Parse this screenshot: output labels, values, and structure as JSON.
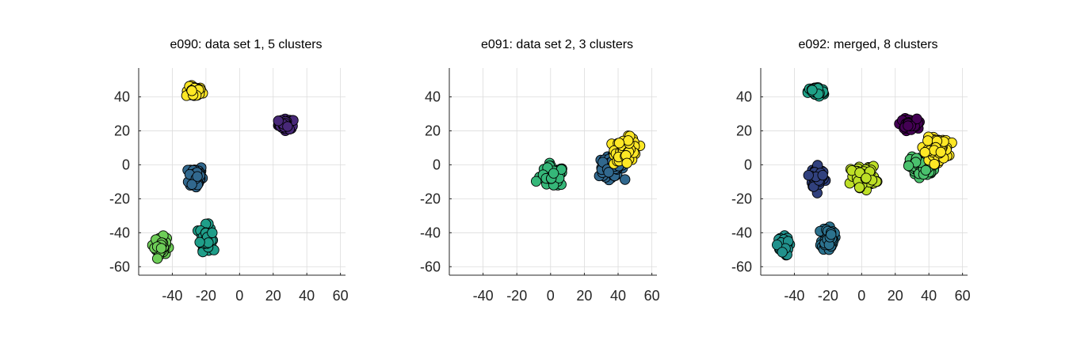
{
  "chart_data": [
    {
      "type": "scatter",
      "title": "e090: data set 1, 5 clusters",
      "xlim": [
        -60,
        63
      ],
      "ylim": [
        -65,
        57
      ],
      "xticks": [
        -40,
        -20,
        0,
        20,
        40,
        60
      ],
      "yticks": [
        40,
        20,
        0,
        -20,
        -40,
        -60
      ],
      "grid": true,
      "series": [
        {
          "color": "#482878",
          "center": [
            28,
            24
          ],
          "spread": [
            4,
            2.5
          ],
          "count": 55
        },
        {
          "color": "#fde725",
          "center": [
            -27,
            43
          ],
          "spread": [
            4,
            2.5
          ],
          "count": 55
        },
        {
          "color": "#31688e",
          "center": [
            -26,
            -7
          ],
          "spread": [
            3.5,
            6
          ],
          "count": 55
        },
        {
          "color": "#1f9e89",
          "center": [
            -20,
            -43
          ],
          "spread": [
            3,
            6
          ],
          "count": 55
        },
        {
          "color": "#6ece58",
          "center": [
            -47,
            -48
          ],
          "spread": [
            3,
            4.5
          ],
          "count": 50
        }
      ]
    },
    {
      "type": "scatter",
      "title": "e091: data set 2, 3 clusters",
      "xlim": [
        -60,
        63
      ],
      "ylim": [
        -65,
        57
      ],
      "xticks": [
        -40,
        -20,
        0,
        20,
        40,
        60
      ],
      "yticks": [
        40,
        20,
        0,
        -20,
        -40,
        -60
      ],
      "grid": true,
      "series": [
        {
          "color": "#31688e",
          "center": [
            36,
            -1
          ],
          "spread": [
            6,
            5
          ],
          "count": 80
        },
        {
          "color": "#35b779",
          "center": [
            1,
            -7
          ],
          "spread": [
            6,
            5
          ],
          "count": 80
        },
        {
          "color": "#fde725",
          "center": [
            45,
            9
          ],
          "spread": [
            5.5,
            5.5
          ],
          "count": 90
        }
      ]
    },
    {
      "type": "scatter",
      "title": "e092: merged, 8 clusters",
      "xlim": [
        -60,
        63
      ],
      "ylim": [
        -65,
        57
      ],
      "xticks": [
        -40,
        -20,
        0,
        20,
        40,
        60
      ],
      "yticks": [
        40,
        20,
        0,
        -20,
        -40,
        -60
      ],
      "grid": true,
      "series": [
        {
          "color": "#440154",
          "center": [
            28,
            24
          ],
          "spread": [
            4,
            2.5
          ],
          "count": 55
        },
        {
          "color": "#1fa187",
          "center": [
            -27,
            43
          ],
          "spread": [
            4,
            2.5
          ],
          "count": 55
        },
        {
          "color": "#31417e",
          "center": [
            -26,
            -7
          ],
          "spread": [
            3.5,
            6
          ],
          "count": 55
        },
        {
          "color": "#2c728e",
          "center": [
            -20,
            -43
          ],
          "spread": [
            3,
            6
          ],
          "count": 55
        },
        {
          "color": "#21918c",
          "center": [
            -47,
            -48
          ],
          "spread": [
            3,
            4.5
          ],
          "count": 50
        },
        {
          "color": "#4ac16d",
          "center": [
            36,
            -1
          ],
          "spread": [
            6,
            5
          ],
          "count": 80
        },
        {
          "color": "#bddf26",
          "center": [
            1,
            -7
          ],
          "spread": [
            6,
            5
          ],
          "count": 80
        },
        {
          "color": "#fde725",
          "center": [
            45,
            9
          ],
          "spread": [
            5.5,
            5.5
          ],
          "count": 90
        }
      ]
    }
  ]
}
